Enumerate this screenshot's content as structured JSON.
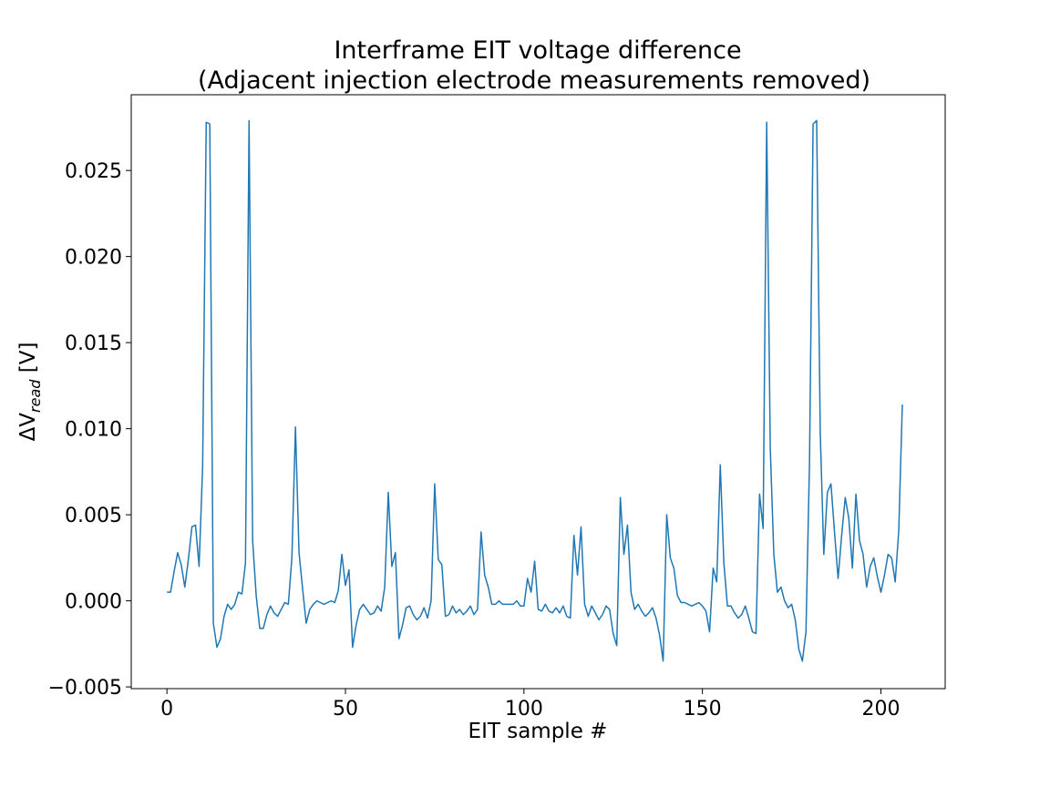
{
  "chart_data": {
    "type": "line",
    "title": [
      "Interframe EIT voltage difference",
      "(Adjacent injection electrode measurements removed)"
    ],
    "xlabel": "EIT sample #",
    "ylabel": {
      "prefix": "ΔV",
      "subscript": "read",
      "suffix": " [V]"
    },
    "xlim": [
      -10,
      218
    ],
    "ylim": [
      -0.0051,
      0.0294
    ],
    "xticks": [
      0,
      50,
      100,
      150,
      200
    ],
    "xtick_labels": [
      "0",
      "50",
      "100",
      "150",
      "200"
    ],
    "yticks": [
      -0.005,
      0.0,
      0.005,
      0.01,
      0.015,
      0.02,
      0.025
    ],
    "ytick_labels": [
      "−0.005",
      "0.000",
      "0.005",
      "0.010",
      "0.015",
      "0.020",
      "0.025"
    ],
    "grid": false,
    "series": [
      {
        "color": "#1f77b4",
        "values": [
          0.0005,
          0.0005,
          0.0017,
          0.0028,
          0.0021,
          0.0008,
          0.0024,
          0.0043,
          0.0044,
          0.002,
          0.0078,
          0.0278,
          0.0277,
          -0.0013,
          -0.0027,
          -0.0022,
          -0.0009,
          -0.0002,
          -0.0005,
          -0.0002,
          0.0005,
          0.0004,
          0.0022,
          0.0279,
          0.0035,
          0.0003,
          -0.0016,
          -0.0016,
          -0.0008,
          -0.0003,
          -0.0007,
          -0.0009,
          -0.0005,
          -0.0001,
          -0.0002,
          0.0025,
          0.0101,
          0.0028,
          0.0007,
          -0.0013,
          -0.0005,
          -0.0002,
          0.0,
          -0.0001,
          -0.0002,
          -0.0001,
          0.0,
          -0.0001,
          0.0006,
          0.0027,
          0.0009,
          0.0018,
          -0.0027,
          -0.0014,
          -0.0005,
          -0.0002,
          -0.0005,
          -0.0008,
          -0.0007,
          -0.0003,
          -0.0006,
          0.0008,
          0.0063,
          0.002,
          0.0028,
          -0.0022,
          -0.0014,
          -0.0004,
          -0.0003,
          -0.0008,
          -0.0011,
          -0.0009,
          -0.0004,
          -0.001,
          0.0,
          0.0068,
          0.0024,
          0.0021,
          -0.0009,
          -0.0008,
          -0.0003,
          -0.0007,
          -0.0005,
          -0.0008,
          -0.0006,
          -0.0003,
          -0.0008,
          -0.0005,
          0.004,
          0.0015,
          0.0008,
          -0.0002,
          -0.0002,
          0.0,
          -0.0002,
          -0.0002,
          -0.0002,
          -0.0002,
          0.0,
          -0.0003,
          -0.0003,
          0.0013,
          0.0005,
          0.0023,
          -0.0005,
          -0.0006,
          -0.0002,
          -0.0006,
          -0.0007,
          -0.0004,
          -0.0007,
          -0.0003,
          -0.0009,
          -0.001,
          0.0038,
          0.0015,
          0.0043,
          -0.0002,
          -0.0009,
          -0.0003,
          -0.0007,
          -0.0011,
          -0.0008,
          -0.0003,
          -0.0005,
          -0.0019,
          -0.0026,
          0.006,
          0.0027,
          0.0044,
          0.0005,
          -0.0005,
          -0.0002,
          -0.0006,
          -0.0009,
          -0.0007,
          -0.0004,
          -0.001,
          -0.002,
          -0.0035,
          0.005,
          0.0025,
          0.0019,
          0.0003,
          -0.0001,
          -0.0001,
          -0.0002,
          -0.0003,
          -0.0002,
          -0.0001,
          -0.0003,
          -0.0006,
          -0.0018,
          0.0019,
          0.0011,
          0.0079,
          0.0022,
          -0.0003,
          -0.0003,
          -0.0007,
          -0.001,
          -0.0008,
          -0.0003,
          -0.001,
          -0.0018,
          -0.0019,
          0.0062,
          0.0042,
          0.0278,
          0.0089,
          0.0027,
          0.0005,
          0.0008,
          0.0,
          -0.0004,
          -0.0002,
          -0.0011,
          -0.0028,
          -0.0035,
          -0.0018,
          0.0081,
          0.0277,
          0.0279,
          0.0098,
          0.0027,
          0.0063,
          0.0068,
          0.004,
          0.0013,
          0.0038,
          0.006,
          0.0048,
          0.0019,
          0.0062,
          0.0035,
          0.0027,
          0.0008,
          0.002,
          0.0025,
          0.0014,
          0.0005,
          0.0015,
          0.0027,
          0.0025,
          0.0011,
          0.0041,
          0.0114
        ]
      }
    ]
  }
}
